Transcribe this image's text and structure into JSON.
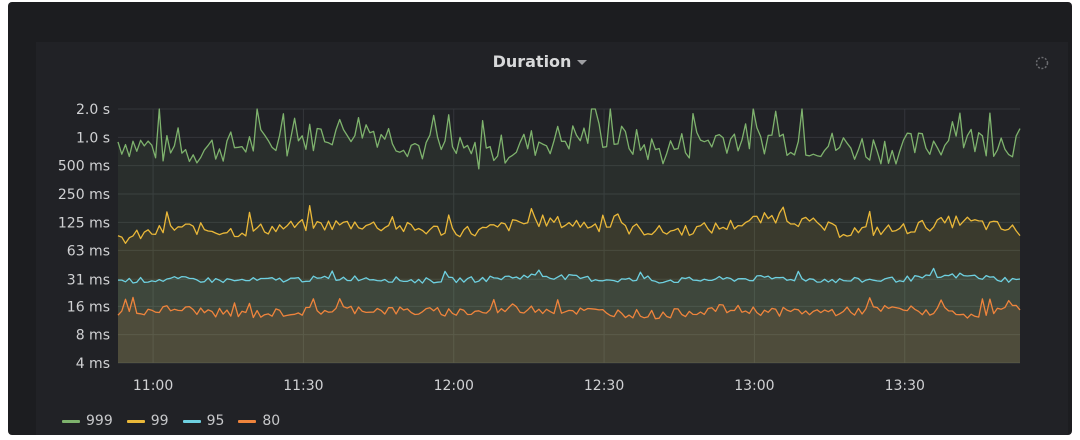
{
  "panel": {
    "title": "Duration"
  },
  "icons": {
    "settings": "gear-icon",
    "title_menu": "chevron-down-icon"
  },
  "chart_data": {
    "type": "line",
    "title": "Duration",
    "y_scale": "log2",
    "y_ticks": [
      "4 ms",
      "8 ms",
      "16 ms",
      "31 ms",
      "63 ms",
      "125 ms",
      "250 ms",
      "500 ms",
      "1.0 s",
      "2.0 s"
    ],
    "y_tick_values_ms": [
      4,
      8,
      16,
      31,
      63,
      125,
      250,
      500,
      1000,
      2000
    ],
    "x_ticks": [
      "11:00",
      "11:30",
      "12:00",
      "12:30",
      "13:00",
      "13:30"
    ],
    "x_range": [
      "10:53",
      "13:53"
    ],
    "x_unit": "minutes",
    "grid": true,
    "fill_area": true,
    "legend_position": "bottom-left",
    "x": [
      0,
      12,
      24,
      36,
      48,
      60,
      72,
      84,
      96,
      108,
      120,
      132,
      144,
      156,
      168,
      180
    ],
    "series": [
      {
        "name": "999",
        "color": "#7eb26d",
        "values": [
          900,
          700,
          820,
          950,
          1300,
          800,
          650,
          900,
          1100,
          700,
          1000,
          950,
          800,
          750,
          950,
          880
        ]
      },
      {
        "name": "99",
        "color": "#eab839",
        "values": [
          80,
          110,
          100,
          115,
          120,
          105,
          100,
          130,
          115,
          100,
          110,
          145,
          100,
          105,
          130,
          100
        ]
      },
      {
        "name": "95",
        "color": "#6ed0e0",
        "values": [
          30,
          31,
          30,
          31,
          32,
          30,
          31,
          34,
          31,
          30,
          31,
          32,
          30,
          31,
          34,
          30
        ]
      },
      {
        "name": "80",
        "color": "#ef843c",
        "values": [
          14,
          15,
          13,
          14,
          15,
          14,
          14,
          15,
          14,
          13,
          15,
          14,
          14,
          15,
          13,
          15
        ]
      }
    ]
  }
}
